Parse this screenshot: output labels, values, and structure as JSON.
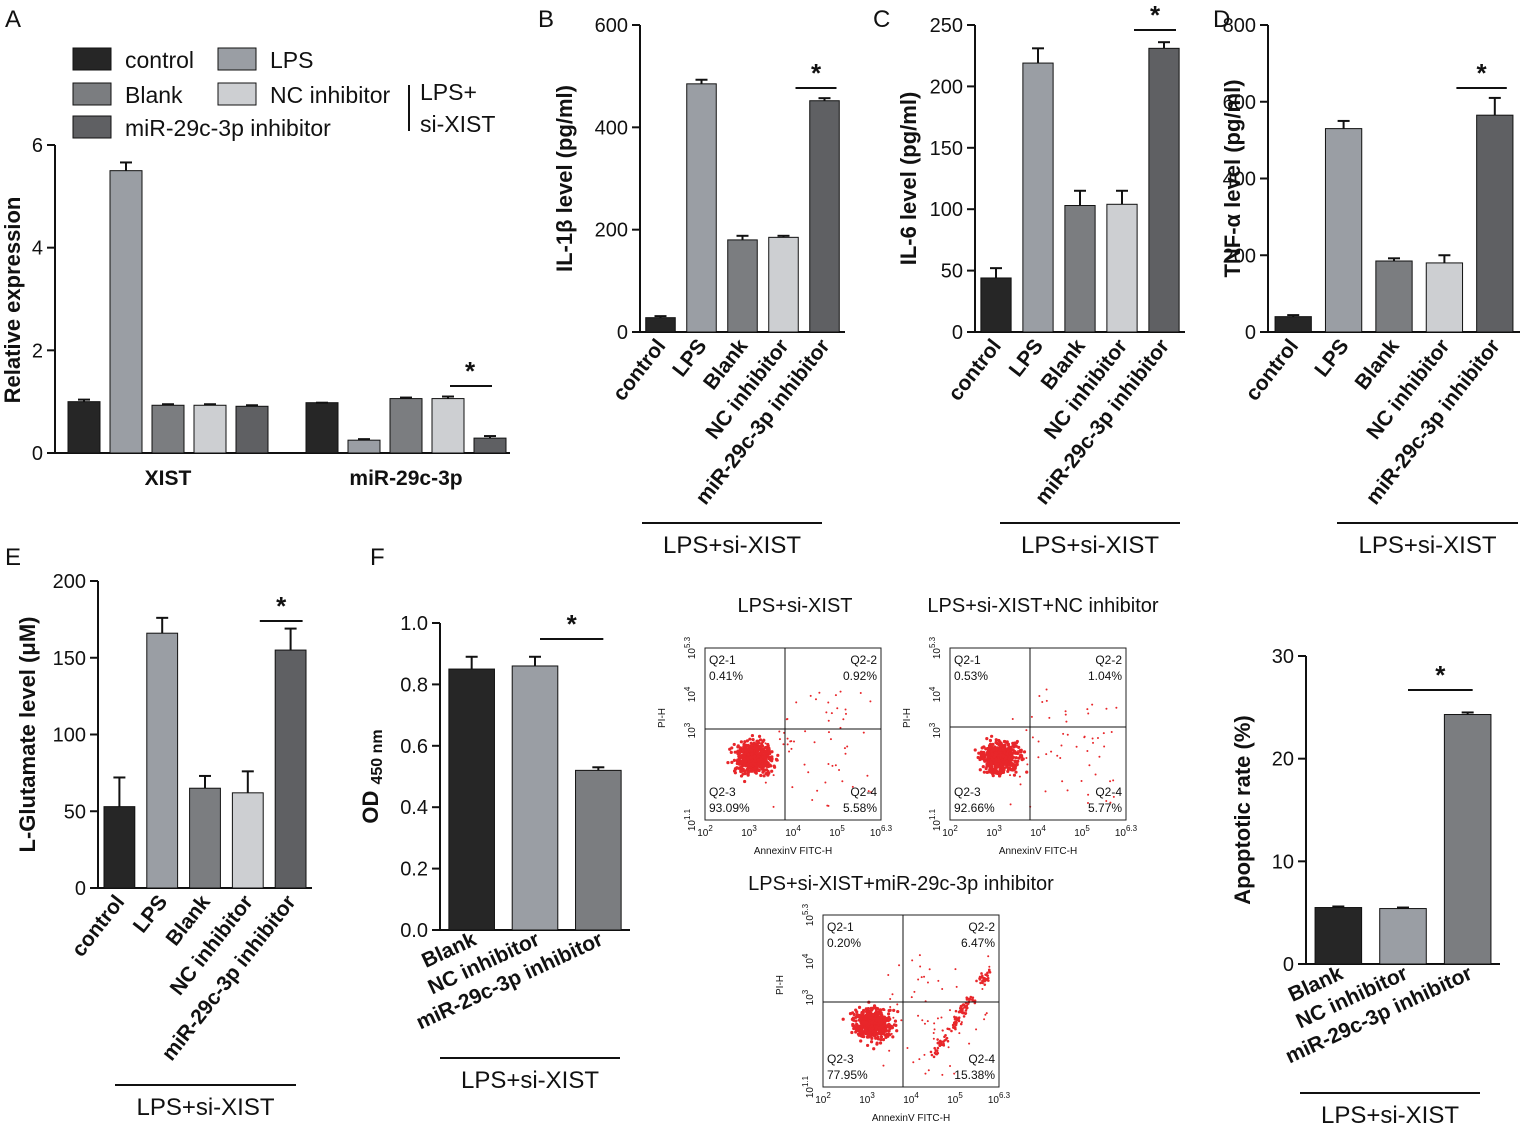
{
  "panel_labels": [
    "A",
    "B",
    "C",
    "D",
    "E",
    "F"
  ],
  "colors": {
    "control": "#262626",
    "LPS": "#9a9ea4",
    "Blank": "#7b7d80",
    "NC inhibitor": "#cdcfd2",
    "miR-29c-3p inhibitor": "#5f6063"
  },
  "legend": {
    "items": [
      "control",
      "LPS",
      "Blank",
      "NC inhibitor",
      "miR-29c-3p inhibitor"
    ],
    "bracket_label": [
      "LPS+",
      "si-XIST"
    ]
  },
  "chart_data": [
    {
      "id": "A",
      "type": "bar",
      "ylabel": "Relative expression",
      "ylim": [
        0,
        6
      ],
      "yticks": [
        0,
        2,
        4,
        6
      ],
      "groups": [
        "XIST",
        "miR-29c-3p"
      ],
      "series": [
        {
          "name": "control",
          "values": [
            1.0,
            0.98
          ],
          "errors": [
            0.04,
            0.0
          ]
        },
        {
          "name": "LPS",
          "values": [
            5.5,
            0.25
          ],
          "errors": [
            0.16,
            0.02
          ]
        },
        {
          "name": "Blank",
          "values": [
            0.93,
            1.06
          ],
          "errors": [
            0.02,
            0.02
          ]
        },
        {
          "name": "NC inhibitor",
          "values": [
            0.93,
            1.06
          ],
          "errors": [
            0.02,
            0.04
          ]
        },
        {
          "name": "miR-29c-3p inhibitor",
          "values": [
            0.91,
            0.29
          ],
          "errors": [
            0.02,
            0.04
          ]
        }
      ],
      "annotations": [
        "*"
      ]
    },
    {
      "id": "B",
      "type": "bar",
      "ylabel": "IL-1β level (pg/ml)",
      "ylim": [
        0,
        600
      ],
      "yticks": [
        0,
        200,
        400,
        600
      ],
      "categories": [
        "control",
        "LPS",
        "Blank",
        "NC inhibitor",
        "miR-29c-3p inhibitor"
      ],
      "values": [
        28,
        485,
        180,
        185,
        452
      ],
      "errors": [
        3,
        8,
        8,
        3,
        5
      ],
      "group_label": "LPS+si-XIST",
      "annotations": [
        "*"
      ]
    },
    {
      "id": "C",
      "type": "bar",
      "ylabel": "IL-6 level (pg/ml)",
      "ylim": [
        0,
        250
      ],
      "yticks": [
        0,
        50,
        100,
        150,
        200,
        250
      ],
      "categories": [
        "control",
        "LPS",
        "Blank",
        "NC inhibitor",
        "miR-29c-3p inhibitor"
      ],
      "values": [
        44,
        219,
        103,
        104,
        231
      ],
      "errors": [
        8,
        12,
        12,
        11,
        5
      ],
      "group_label": "LPS+si-XIST",
      "annotations": [
        "*"
      ]
    },
    {
      "id": "D",
      "type": "bar",
      "ylabel": "TNF-α level (pg/ml)",
      "ylim": [
        0,
        800
      ],
      "yticks": [
        0,
        200,
        400,
        600,
        800
      ],
      "categories": [
        "control",
        "LPS",
        "Blank",
        "NC inhibitor",
        "miR-29c-3p inhibitor"
      ],
      "values": [
        40,
        530,
        185,
        180,
        565
      ],
      "errors": [
        4,
        20,
        7,
        20,
        45
      ],
      "group_label": "LPS+si-XIST",
      "annotations": [
        "*"
      ]
    },
    {
      "id": "E",
      "type": "bar",
      "ylabel": "L-Glutamate level (μM)",
      "ylim": [
        0,
        200
      ],
      "yticks": [
        0,
        50,
        100,
        150,
        200
      ],
      "categories": [
        "control",
        "LPS",
        "Blank",
        "NC inhibitor",
        "miR-29c-3p inhibitor"
      ],
      "values": [
        53,
        166,
        65,
        62,
        155
      ],
      "errors": [
        19,
        10,
        8,
        14,
        14
      ],
      "group_label": "LPS+si-XIST",
      "annotations": [
        "*"
      ]
    },
    {
      "id": "F1",
      "type": "bar",
      "ylabel": "OD",
      "ylabel_sub": "450 nm",
      "ylim": [
        0,
        1.0
      ],
      "yticks": [
        0.0,
        0.2,
        0.4,
        0.6,
        0.8,
        1.0
      ],
      "categories": [
        "Blank",
        "NC inhibitor",
        "miR-29c-3p inhibitor"
      ],
      "values": [
        0.85,
        0.86,
        0.52
      ],
      "errors": [
        0.04,
        0.03,
        0.01
      ],
      "group_label": "LPS+si-XIST",
      "annotations": [
        "*"
      ]
    },
    {
      "id": "F2",
      "type": "bar",
      "ylabel": "Apoptotic rate (%)",
      "ylim": [
        0,
        30
      ],
      "yticks": [
        0,
        10,
        20,
        30
      ],
      "categories": [
        "Blank",
        "NC inhibitor",
        "miR-29c-3p inhibitor"
      ],
      "values": [
        5.5,
        5.4,
        24.3
      ],
      "errors": [
        0.1,
        0.1,
        0.2
      ],
      "group_label": "LPS+si-XIST",
      "annotations": [
        "*"
      ]
    }
  ],
  "flow_plots": [
    {
      "title": "LPS+si-XIST",
      "quadrants": {
        "q1": [
          "Q2-1",
          "0.41%"
        ],
        "q2": [
          "Q2-2",
          "0.92%"
        ],
        "q3": [
          "Q2-3",
          "93.09%"
        ],
        "q4": [
          "Q2-4",
          "5.58%"
        ]
      }
    },
    {
      "title": "LPS+si-XIST+NC inhibitor",
      "quadrants": {
        "q1": [
          "Q2-1",
          "0.53%"
        ],
        "q2": [
          "Q2-2",
          "1.04%"
        ],
        "q3": [
          "Q2-3",
          "92.66%"
        ],
        "q4": [
          "Q2-4",
          "5.77%"
        ]
      }
    },
    {
      "title": "LPS+si-XIST+miR-29c-3p inhibitor",
      "quadrants": {
        "q1": [
          "Q2-1",
          "0.20%"
        ],
        "q2": [
          "Q2-2",
          "6.47%"
        ],
        "q3": [
          "Q2-3",
          "77.95%"
        ],
        "q4": [
          "Q2-4",
          "15.38%"
        ]
      }
    }
  ],
  "flow_axes": {
    "xlabel": "AnnexinV FITC-H",
    "ylabel": "PI-H",
    "xticks": [
      "10",
      "10",
      "10",
      "10",
      "10"
    ],
    "xtick_exp": [
      "2",
      "3",
      "4",
      "5",
      "6.3"
    ],
    "yticks": [
      "10",
      "10",
      "10",
      "10"
    ],
    "ytick_exp": [
      "1.1",
      "3",
      "4",
      "5.3"
    ]
  }
}
